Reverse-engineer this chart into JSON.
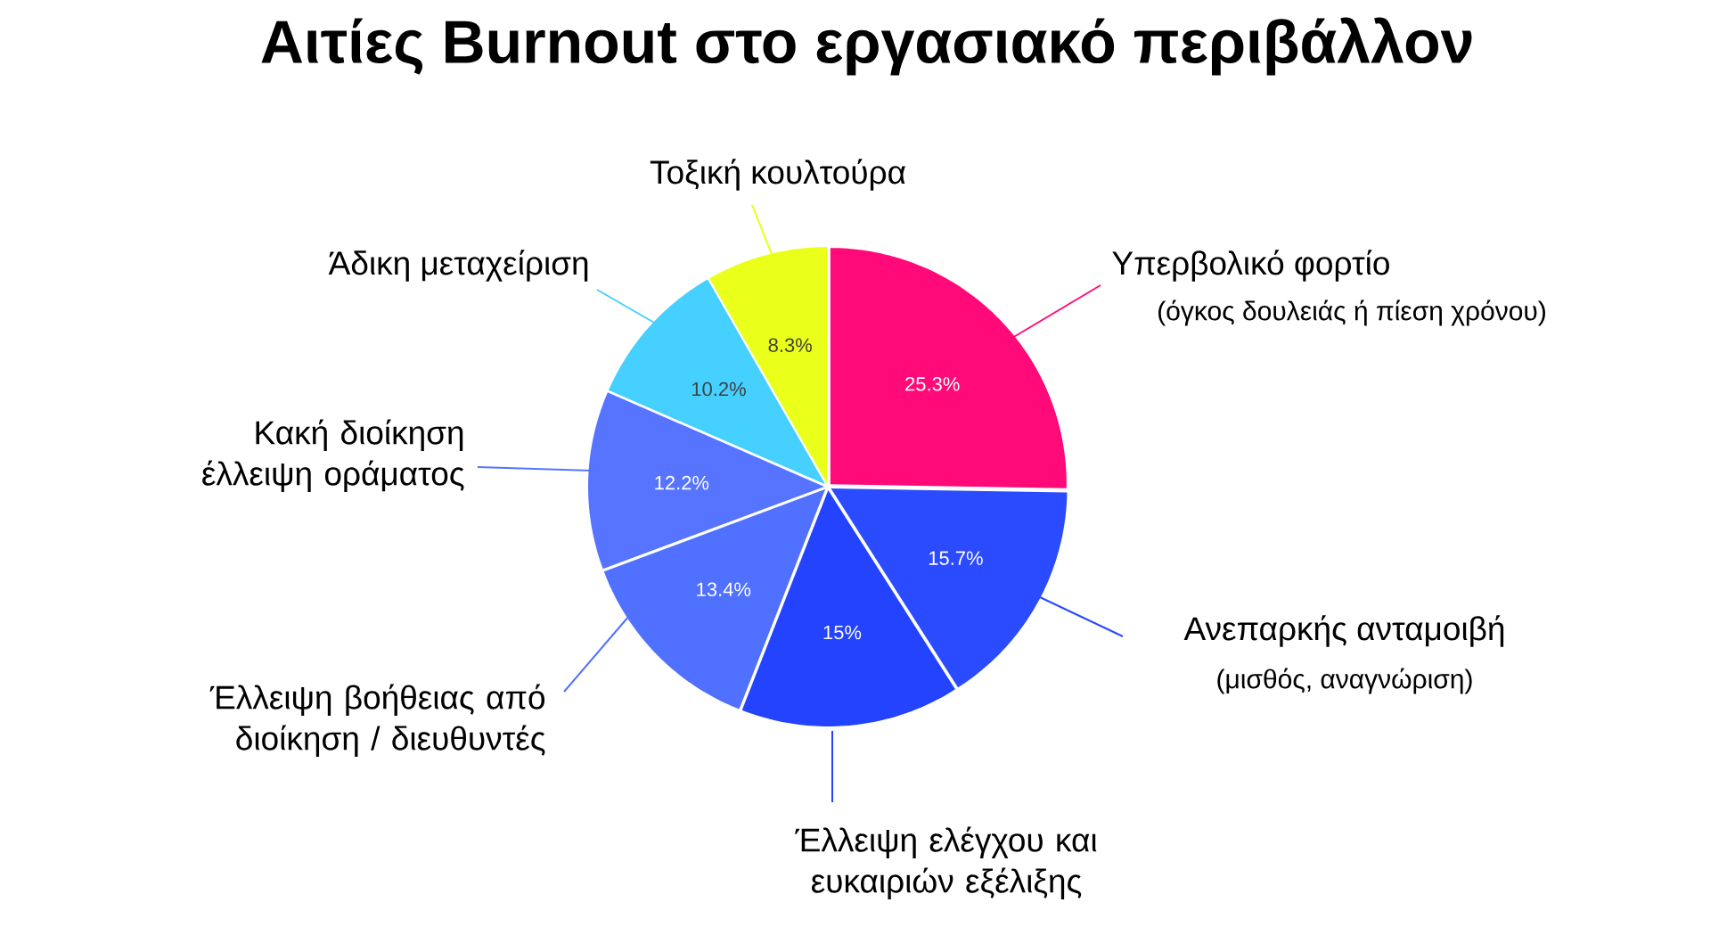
{
  "chart_data": {
    "type": "pie",
    "title": "Αιτίες Burnout στο εργασιακό περιβάλλον",
    "categories": [
      "Υπερβολικό φορτίο",
      "Ανεπαρκής ανταμοιβή",
      "Έλλειψη ελέγχου και ευκαιριών εξέλιξης",
      "Έλλειψη βοήθειας από διοίκηση / διευθυντές",
      "Κακή διοίκηση έλλειψη οράματος",
      "Άδικη μεταχείριση",
      "Τοξική κουλτούρα"
    ],
    "values": [
      25.3,
      15.7,
      15,
      13.4,
      12.2,
      10.2,
      8.3
    ],
    "value_labels": [
      "25.3%",
      "15.7%",
      "15%",
      "13.4%",
      "12.2%",
      "10.2%",
      "8.3%"
    ],
    "colors": [
      "#ff0a78",
      "#2a4bff",
      "#2343ff",
      "#5070ff",
      "#5674ff",
      "#45d0ff",
      "#eaff1a"
    ],
    "annotations": [
      "(όγκος δουλειάς ή πίεση χρόνου)",
      "(μισθός, αναγνώριση)"
    ]
  }
}
